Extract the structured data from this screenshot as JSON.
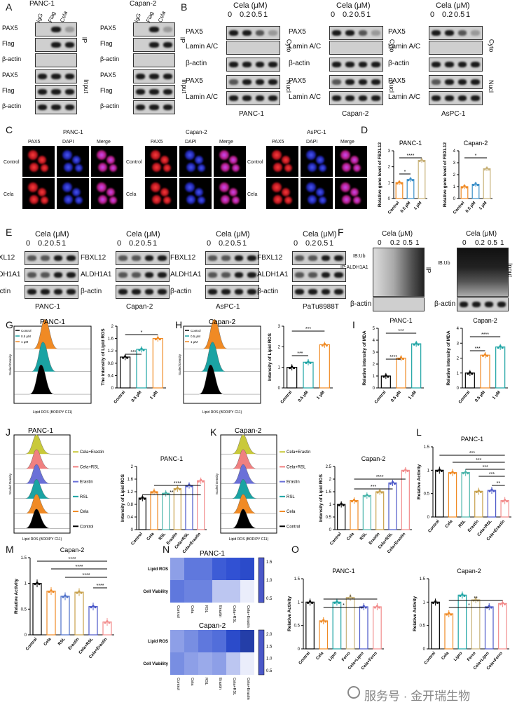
{
  "panels": {
    "A": {
      "letter": "A",
      "left": {
        "cell": "PANC-1",
        "lanes": [
          "IgG",
          "Flag",
          "Cela"
        ],
        "rows_ip": [
          "PAX5",
          "Flag",
          "β-actin"
        ],
        "rows_input": [
          "PAX5",
          "Flag",
          "β-actin"
        ]
      },
      "right": {
        "cell": "Capan-2",
        "lanes": [
          "IgG",
          "Flag",
          "Cela"
        ]
      },
      "ip": "IP",
      "input": "Input"
    },
    "B": {
      "letter": "B",
      "cela": "Cela (μM)",
      "doses": [
        "0",
        "0.2",
        "0.5",
        "1"
      ],
      "rows": [
        "PAX5",
        "Lamin A/C",
        "β-actin",
        "PAX5",
        "Lamin A/C"
      ],
      "cyto": "Cyto",
      "nucl": "Nucl",
      "cells": [
        "PANC-1",
        "Capan-2",
        "AsPC-1"
      ]
    },
    "C": {
      "letter": "C",
      "cells": [
        "PANC-1",
        "Capan-2",
        "AsPC-1"
      ],
      "channels": [
        "PAX5",
        "DAPI",
        "Merge"
      ],
      "rows": [
        "Control",
        "Cela"
      ]
    },
    "D": {
      "letter": "D",
      "titles": [
        "PANC-1",
        "Capan-2"
      ],
      "ylabel": "Relative gene level of FBXL12",
      "xcats": [
        "Control",
        "0.5 μM",
        "1 μM"
      ],
      "stars": [
        "*",
        "****",
        "*"
      ]
    },
    "E": {
      "letter": "E",
      "cela": "Cela (μM)",
      "doses": [
        "0",
        "0.2",
        "0.5",
        "1"
      ],
      "rows": [
        "FBXL12",
        "ALDH1A1",
        "β-actin"
      ],
      "cells": [
        "PANC-1",
        "Capan-2",
        "AsPC-1",
        "PaTu8988T"
      ]
    },
    "F": {
      "letter": "F",
      "cela": "Cela (μM)",
      "doses": [
        "0",
        "0.2",
        "0.5",
        "1"
      ],
      "ib": "IB:Ub",
      "ipaldh": "IP:ALDH1A1",
      "ip": "IP",
      "input": "Input",
      "actin": "β-actin"
    },
    "G": {
      "letter": "G",
      "title": "PANC-1",
      "legend": [
        "Control",
        "0.5 μM",
        "1 μM"
      ],
      "xlab": "Lipid ROS (BODIPY C11)",
      "ylab": "Scaled Density",
      "bar_ylab": "The intensity of Lipid ROS",
      "stars": [
        "***",
        "*"
      ]
    },
    "H": {
      "letter": "H",
      "title": "Capan-2",
      "legend": [
        "Control",
        "0.5 μM",
        "1 μM"
      ],
      "xlab": "Lipid ROS (BODIPY C11)",
      "ylab": "Scaled Density",
      "bar_ylab": "Intensity of Lipid ROS",
      "stars": [
        "***",
        "***"
      ]
    },
    "I": {
      "letter": "I",
      "titles": [
        "PANC-1",
        "Capan-2"
      ],
      "ylab": "Relative intensity of MDA",
      "stars": [
        "****",
        "***",
        "***",
        "****"
      ]
    },
    "J": {
      "letter": "J",
      "title": "PANC-1",
      "legend": [
        "Cela+Erastin",
        "Cela+RSL",
        "Erastin",
        "RSL",
        "Cela",
        "Control"
      ],
      "bar_title": "PANC-1",
      "bar_ylab": "Intensity of Lipid ROS",
      "xcats": [
        "Control",
        "Cela",
        "RSL",
        "Erastin",
        "Cela+RSL",
        "Cela+Erastin"
      ],
      "stars": [
        "****",
        "**"
      ]
    },
    "K": {
      "letter": "K",
      "title": "Capan-2",
      "legend": [
        "Cela+Erastin",
        "Cela+RSL",
        "Erastin",
        "RSL",
        "Cela",
        "Control"
      ],
      "bar_title": "Capan-2",
      "bar_ylab": "Intensity of Lipid ROS",
      "stars": [
        "****",
        "***"
      ]
    },
    "L": {
      "letter": "L",
      "title": "PANC-1",
      "ylab": "Relative Activity",
      "xcats": [
        "Control",
        "Cela",
        "RSL",
        "Erastin",
        "Cela+RSL",
        "Cela+Erastin"
      ],
      "stars": [
        "***",
        "***",
        "***",
        "***",
        "**"
      ]
    },
    "M": {
      "letter": "M",
      "title": "Capan-2",
      "ylab": "Relative Activity",
      "stars": [
        "****",
        "****",
        "****",
        "****"
      ]
    },
    "N": {
      "letter": "N",
      "titles": [
        "PANC-1",
        "Capan-2"
      ],
      "rows": [
        "Lipid ROS",
        "Cell Viability"
      ],
      "cols": [
        "Control",
        "Cela",
        "RSL",
        "Erastin",
        "Cela+RSL",
        "Cela+Erastin"
      ],
      "scale1": [
        "1.5",
        "1.0",
        "0.5"
      ],
      "scale2": [
        "2.0",
        "1.5",
        "1.0",
        "0.5"
      ]
    },
    "O": {
      "letter": "O",
      "titles": [
        "PANC-1",
        "Capan-2"
      ],
      "ylab": "Relative Activity",
      "xcats": [
        "Control",
        "Cela",
        "Lipro",
        "Ferro",
        "Cela+Lipro",
        "Cela+Ferro"
      ],
      "stars": [
        "*",
        "*",
        "*",
        "**"
      ]
    }
  },
  "watermark": "服务号 · 金开瑞生物",
  "chart_data": [
    {
      "type": "bar",
      "title": "PANC-1",
      "ylabel": "Relative gene level of FBXL12",
      "categories": [
        "Control",
        "0.5 μM",
        "1 μM"
      ],
      "values": [
        1.0,
        1.2,
        2.4
      ],
      "ylim": [
        0,
        3
      ]
    },
    {
      "type": "bar",
      "title": "Capan-2",
      "ylabel": "Relative gene level of FBXL12",
      "categories": [
        "Control",
        "0.5 μM",
        "1 μM"
      ],
      "values": [
        1.0,
        1.2,
        2.5
      ],
      "ylim": [
        0,
        4
      ]
    },
    {
      "type": "bar",
      "title": "PANC-1",
      "ylabel": "The intensity of Lipid ROS",
      "categories": [
        "Control",
        "0.5 μM",
        "1 μM"
      ],
      "values": [
        1.0,
        1.25,
        1.6
      ],
      "ylim": [
        0,
        2.0
      ]
    },
    {
      "type": "bar",
      "title": "Capan-2",
      "ylabel": "Intensity of Lipid ROS",
      "categories": [
        "Control",
        "0.5 μM",
        "1 μM"
      ],
      "values": [
        1.0,
        1.25,
        2.1
      ],
      "ylim": [
        0,
        3
      ]
    },
    {
      "type": "bar",
      "title": "PANC-1",
      "ylabel": "Relative intensity of MDA",
      "categories": [
        "Control",
        "0.5 μM",
        "1 μM"
      ],
      "values": [
        1.0,
        2.5,
        3.7
      ],
      "ylim": [
        0,
        5
      ]
    },
    {
      "type": "bar",
      "title": "Capan-2",
      "ylabel": "Relative intensity of MDA",
      "categories": [
        "Control",
        "0.5 μM",
        "1 μM"
      ],
      "values": [
        1.0,
        2.2,
        2.75
      ],
      "ylim": [
        0,
        4
      ]
    },
    {
      "type": "bar",
      "title": "PANC-1",
      "ylabel": "Intensity of Lipid ROS",
      "categories": [
        "Control",
        "Cela",
        "RSL",
        "Erastin",
        "Cela+RSL",
        "Cela+Erastin"
      ],
      "values": [
        1.0,
        1.2,
        1.15,
        1.3,
        1.4,
        1.55
      ],
      "ylim": [
        0,
        2.0
      ]
    },
    {
      "type": "bar",
      "title": "Capan-2",
      "ylabel": "Intensity of Lipid ROS",
      "categories": [
        "Control",
        "Cela",
        "RSL",
        "Erastin",
        "Cela+RSL",
        "Cela+Erastin"
      ],
      "values": [
        1.0,
        1.15,
        1.35,
        1.5,
        1.85,
        2.35
      ],
      "ylim": [
        0,
        2.5
      ]
    },
    {
      "type": "bar",
      "title": "PANC-1",
      "ylabel": "Relative Activity",
      "categories": [
        "Control",
        "Cela",
        "RSL",
        "Erastin",
        "Cela+RSL",
        "Cela+Erastin"
      ],
      "values": [
        1.0,
        0.95,
        0.95,
        0.55,
        0.57,
        0.35
      ],
      "ylim": [
        0,
        1.5
      ]
    },
    {
      "type": "bar",
      "title": "Capan-2",
      "ylabel": "Relative Activity",
      "categories": [
        "Control",
        "Cela",
        "RSL",
        "Erastin",
        "Cela+RSL",
        "Cela+Erastin"
      ],
      "values": [
        1.0,
        0.85,
        0.75,
        0.83,
        0.55,
        0.25
      ],
      "ylim": [
        0,
        1.5
      ]
    },
    {
      "type": "bar",
      "title": "PANC-1",
      "ylabel": "Relative Activity",
      "categories": [
        "Control",
        "Cela",
        "Lipro",
        "Ferro",
        "Cela+Lipro",
        "Cela+Ferro"
      ],
      "values": [
        1.0,
        0.6,
        1.0,
        1.1,
        0.9,
        0.9
      ],
      "ylim": [
        0,
        1.5
      ]
    },
    {
      "type": "bar",
      "title": "Capan-2",
      "ylabel": "Relative Activity",
      "categories": [
        "Control",
        "Cela",
        "Lipro",
        "Ferro",
        "Cela+Lipro",
        "Cela+Ferro"
      ],
      "values": [
        1.0,
        0.75,
        1.15,
        1.05,
        0.9,
        0.97
      ],
      "ylim": [
        0,
        1.5
      ]
    }
  ]
}
